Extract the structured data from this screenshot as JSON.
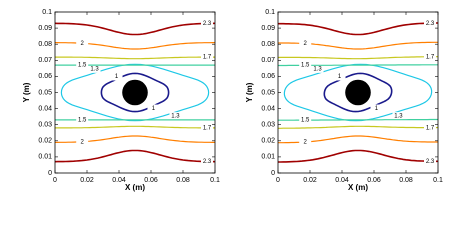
{
  "chart_data": [
    {
      "type": "contour",
      "xlabel": "X (m)",
      "ylabel": "Y (m)",
      "xlim": [
        0,
        0.1
      ],
      "ylim": [
        0,
        0.1
      ],
      "xticks": [
        0,
        0.02,
        0.04,
        0.06,
        0.08,
        0.1
      ],
      "yticks": [
        0,
        0.01,
        0.02,
        0.03,
        0.04,
        0.05,
        0.06,
        0.07,
        0.08,
        0.09,
        0.1
      ],
      "levels": [
        {
          "value": 1,
          "color": "#1a1a8c"
        },
        {
          "value": 1.3,
          "color": "#1ec8e6"
        },
        {
          "value": 1.5,
          "color": "#40d0a0"
        },
        {
          "value": 1.7,
          "color": "#c8c820"
        },
        {
          "value": 2,
          "color": "#ff7f00"
        },
        {
          "value": 2.3,
          "color": "#a00000"
        }
      ]
    },
    {
      "type": "contour",
      "xlabel": "X (m)",
      "ylabel": "Y (m)",
      "xlim": [
        0,
        0.1
      ],
      "ylim": [
        0,
        0.1
      ],
      "xticks": [
        0,
        0.02,
        0.04,
        0.06,
        0.08,
        0.1
      ],
      "yticks": [
        0,
        0.01,
        0.02,
        0.03,
        0.04,
        0.05,
        0.06,
        0.07,
        0.08,
        0.09,
        0.1
      ],
      "levels": [
        {
          "value": 1,
          "color": "#1a1a8c"
        },
        {
          "value": 1.3,
          "color": "#1ec8e6"
        },
        {
          "value": 1.5,
          "color": "#40d0a0"
        },
        {
          "value": 1.7,
          "color": "#c8c820"
        },
        {
          "value": 2,
          "color": "#ff7f00"
        },
        {
          "value": 2.3,
          "color": "#a00000"
        }
      ]
    }
  ]
}
